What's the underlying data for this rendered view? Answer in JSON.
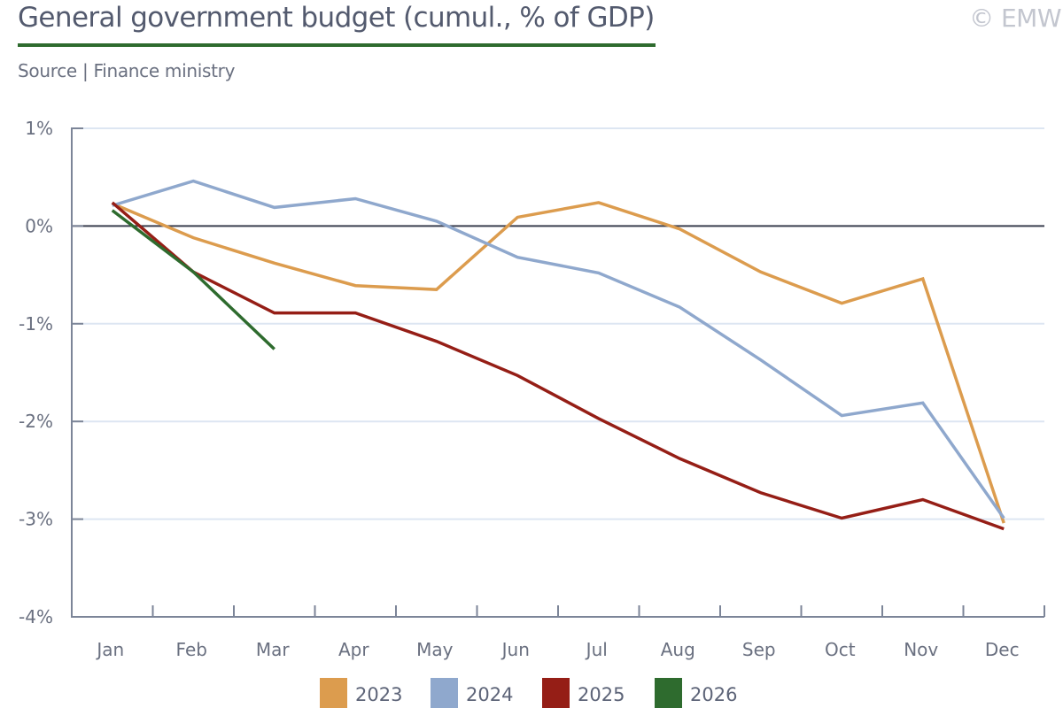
{
  "header": {
    "title": "General government budget (cumul., % of GDP)",
    "source": "Source | Finance ministry",
    "copyright": "© EMW",
    "accent_color": "#2e6b2e"
  },
  "chart_data": {
    "type": "line",
    "title": "General government budget (cumul., % of GDP)",
    "xlabel": "",
    "ylabel": "",
    "categories": [
      "Jan",
      "Feb",
      "Mar",
      "Apr",
      "May",
      "Jun",
      "Jul",
      "Aug",
      "Sep",
      "Oct",
      "Nov",
      "Dec"
    ],
    "ylim": [
      -4,
      1
    ],
    "yticks": [
      1,
      0,
      -1,
      -2,
      -3,
      -4
    ],
    "ytick_labels": [
      "1%",
      "0%",
      "-1%",
      "-2%",
      "-3%",
      "-4%"
    ],
    "grid": true,
    "zero_line": true,
    "legend_position": "bottom-center",
    "series": [
      {
        "name": "2023",
        "color": "#dc9c4e",
        "values": [
          0.23,
          -0.12,
          -0.38,
          -0.61,
          -0.65,
          0.09,
          0.24,
          -0.03,
          -0.47,
          -0.79,
          -0.54,
          -3.04
        ]
      },
      {
        "name": "2024",
        "color": "#8fa8cd",
        "values": [
          0.21,
          0.46,
          0.19,
          0.28,
          0.05,
          -0.32,
          -0.48,
          -0.83,
          -1.37,
          -1.94,
          -1.81,
          -2.99
        ]
      },
      {
        "name": "2025",
        "color": "#951e16",
        "values": [
          0.24,
          -0.47,
          -0.89,
          -0.89,
          -1.18,
          -1.53,
          -1.97,
          -2.38,
          -2.73,
          -2.99,
          -2.8,
          -3.1
        ]
      },
      {
        "name": "2026",
        "color": "#2e6b2e",
        "values": [
          0.16,
          -0.47,
          -1.26,
          null,
          null,
          null,
          null,
          null,
          null,
          null,
          null,
          null
        ]
      }
    ]
  }
}
